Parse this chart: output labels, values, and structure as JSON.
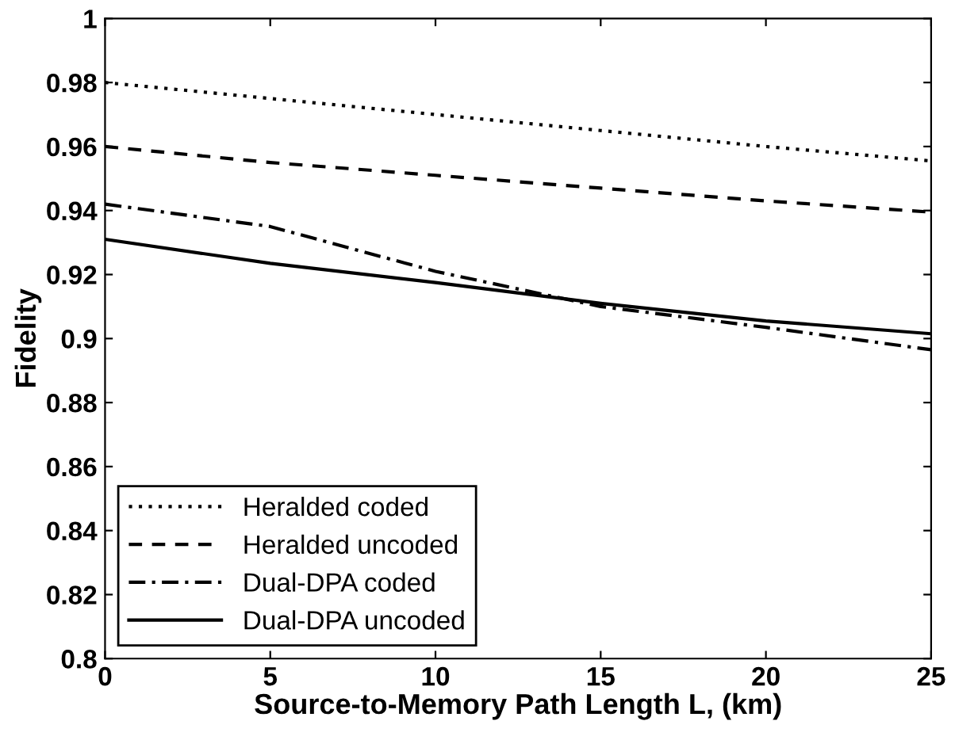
{
  "chart_data": {
    "type": "line",
    "xlabel": "Source-to-Memory Path Length L, (km)",
    "ylabel": "Fidelity",
    "x": [
      0,
      5,
      10,
      15,
      20,
      25
    ],
    "series": [
      {
        "name": "Heralded coded",
        "color": "#000000",
        "line_style": "dotted",
        "values": [
          0.98,
          0.975,
          0.97,
          0.965,
          0.96,
          0.9555
        ]
      },
      {
        "name": "Heralded uncoded",
        "color": "#000000",
        "line_style": "dashed",
        "values": [
          0.96,
          0.955,
          0.951,
          0.947,
          0.943,
          0.9395
        ]
      },
      {
        "name": "Dual-DPA coded",
        "color": "#000000",
        "line_style": "dashdot",
        "values": [
          0.942,
          0.935,
          0.921,
          0.91,
          0.9035,
          0.8965
        ]
      },
      {
        "name": "Dual-DPA uncoded",
        "color": "#000000",
        "line_style": "solid",
        "values": [
          0.931,
          0.9235,
          0.9175,
          0.911,
          0.9055,
          0.9015
        ]
      }
    ],
    "xlim": [
      0,
      25
    ],
    "xticks": [
      0,
      5,
      10,
      15,
      20,
      25
    ],
    "ylim": [
      0.8,
      1
    ],
    "yticks": [
      0.8,
      0.82,
      0.84,
      0.86,
      0.88,
      0.9,
      0.92,
      0.94,
      0.96,
      0.98,
      1
    ],
    "grid": false,
    "legend": "bottom left",
    "marker": "none"
  }
}
